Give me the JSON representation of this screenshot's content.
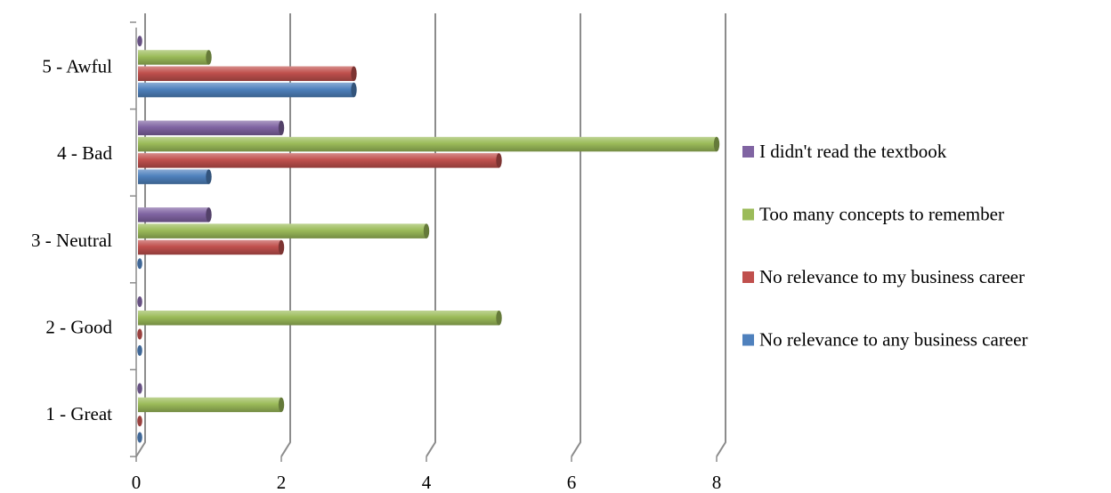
{
  "chart_data": {
    "type": "bar",
    "orientation": "horizontal",
    "style": "3d-cylinder",
    "categories": [
      "1 - Great",
      "2 - Good",
      "3 - Neutral",
      "4 - Bad",
      "5 - Awful"
    ],
    "series": [
      {
        "name": "No relevance to any business career",
        "color": "#4f81bd",
        "values": [
          0,
          0,
          0,
          1,
          3
        ]
      },
      {
        "name": "No relevance to my business career",
        "color": "#c0504d",
        "values": [
          0,
          0,
          2,
          5,
          3
        ]
      },
      {
        "name": "Too many concepts to remember",
        "color": "#9bbb59",
        "values": [
          2,
          5,
          4,
          8,
          1
        ]
      },
      {
        "name": "I didn't read the textbook",
        "color": "#8064a2",
        "values": [
          0,
          0,
          1,
          2,
          0
        ]
      }
    ],
    "xlim": [
      0,
      8
    ],
    "xticks": [
      0,
      2,
      4,
      6,
      8
    ],
    "grid": true,
    "legend_position": "right",
    "legend_order": [
      3,
      2,
      1,
      0
    ]
  }
}
